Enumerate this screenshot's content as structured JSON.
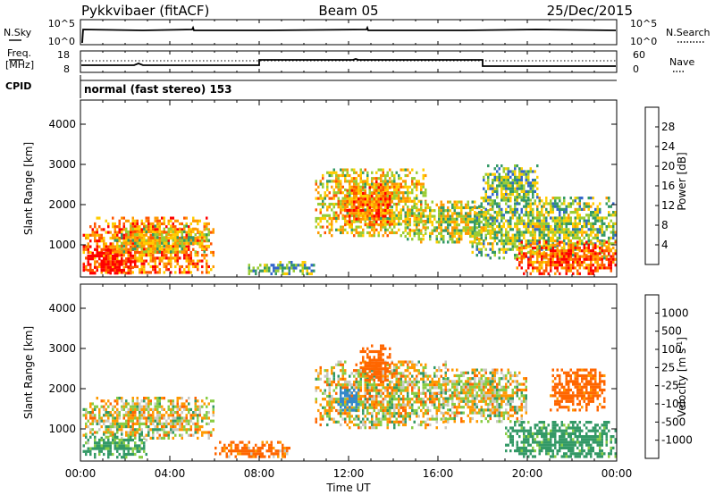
{
  "header": {
    "station": "Pykkvibaer (fitACF)",
    "beam": "Beam 05",
    "date": "25/Dec/2015"
  },
  "nsky_panel": {
    "left_label": "N.Sky",
    "left_ticks": [
      "10^5",
      "10^0"
    ],
    "right_label": "N.Search",
    "right_ticks": [
      "10^5",
      "10^0"
    ]
  },
  "freq_panel": {
    "left_label_1": "Freq.",
    "left_label_2": "[MHz]",
    "left_ticks": [
      "18",
      "8"
    ],
    "right_label": "Nave",
    "right_ticks": [
      "60",
      "0"
    ]
  },
  "cpid": {
    "label": "CPID",
    "mode": "normal (fast stereo) 153"
  },
  "power_colorbar": {
    "title": "Power [dB]",
    "ticks": [
      "28",
      "24",
      "20",
      "16",
      "12",
      "8",
      "4"
    ],
    "colors": [
      "#ff0000",
      "#ff5500",
      "#ff9900",
      "#ffcc00",
      "#99cc33",
      "#339966",
      "#3366cc",
      "#0000ff"
    ]
  },
  "velocity_colorbar": {
    "title_main": "Velocity [m s",
    "title_sup": "-1",
    "title_end": "]",
    "ticks": [
      "1000",
      "500",
      "100",
      "25",
      "-25",
      "-100",
      "-500",
      "-1000"
    ],
    "colors": [
      "#2244bb",
      "#3388cc",
      "#339966",
      "#88cc44",
      "#c8c8c0",
      "#ff9900",
      "#ff6600",
      "#ff3300",
      "#ff0000"
    ]
  },
  "chart_data": [
    {
      "type": "heatmap",
      "name": "power",
      "ylabel": "Slant Range [km]",
      "yticks": [
        1000,
        2000,
        3000,
        4000
      ],
      "ylim": [
        200,
        4600
      ],
      "xlim": [
        0,
        24
      ],
      "blobs": [
        {
          "t0": 0.1,
          "t1": 6.0,
          "r0": 300,
          "r1": 1700,
          "v": 22
        },
        {
          "t0": 0.1,
          "t1": 2.5,
          "r0": 300,
          "r1": 900,
          "v": 28
        },
        {
          "t0": 1.5,
          "t1": 5.8,
          "r0": 800,
          "r1": 1500,
          "v": 14
        },
        {
          "t0": 7.5,
          "t1": 10.5,
          "r0": 300,
          "r1": 600,
          "v": 10
        },
        {
          "t0": 10.5,
          "t1": 15.5,
          "r0": 1200,
          "r1": 2900,
          "v": 16
        },
        {
          "t0": 11.8,
          "t1": 14.0,
          "r0": 1500,
          "r1": 2600,
          "v": 22
        },
        {
          "t0": 14.5,
          "t1": 18.5,
          "r0": 1100,
          "r1": 2100,
          "v": 14
        },
        {
          "t0": 17.5,
          "t1": 24.0,
          "r0": 700,
          "r1": 2200,
          "v": 12
        },
        {
          "t0": 18.0,
          "t1": 20.5,
          "r0": 2100,
          "r1": 3000,
          "v": 10
        },
        {
          "t0": 19.5,
          "t1": 24.0,
          "r0": 300,
          "r1": 1100,
          "v": 24
        }
      ]
    },
    {
      "type": "heatmap",
      "name": "velocity",
      "ylabel": "Slant Range [km]",
      "xlabel": "Time UT",
      "yticks": [
        1000,
        2000,
        3000,
        4000
      ],
      "ylim": [
        200,
        4600
      ],
      "xlim": [
        0,
        24
      ],
      "xticks": [
        "00:00",
        "04:00",
        "08:00",
        "12:00",
        "16:00",
        "20:00",
        "00:00"
      ],
      "blobs": [
        {
          "t0": 0.1,
          "t1": 6.0,
          "r0": 800,
          "r1": 1800,
          "v": 0
        },
        {
          "t0": 0.1,
          "t1": 3.0,
          "r0": 300,
          "r1": 900,
          "v": 150
        },
        {
          "t0": 6.0,
          "t1": 9.5,
          "r0": 300,
          "r1": 700,
          "v": -150
        },
        {
          "t0": 10.5,
          "t1": 16.5,
          "r0": 1000,
          "r1": 2700,
          "v": 0
        },
        {
          "t0": 12.5,
          "t1": 14.0,
          "r0": 2200,
          "r1": 3100,
          "v": -300
        },
        {
          "t0": 11.5,
          "t1": 12.5,
          "r0": 1500,
          "r1": 2000,
          "v": 700
        },
        {
          "t0": 16.0,
          "t1": 20.0,
          "r0": 1200,
          "r1": 2500,
          "v": 0
        },
        {
          "t0": 19.0,
          "t1": 24.0,
          "r0": 300,
          "r1": 1200,
          "v": 200
        },
        {
          "t0": 21.0,
          "t1": 23.5,
          "r0": 1500,
          "r1": 2500,
          "v": -200
        }
      ]
    }
  ]
}
